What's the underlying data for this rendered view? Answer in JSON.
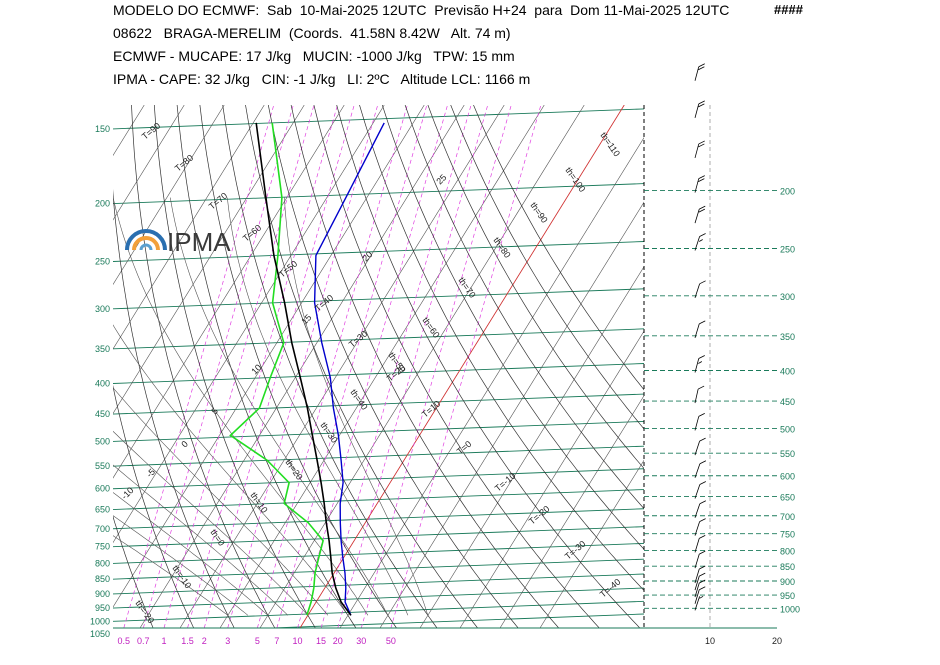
{
  "header": {
    "line1": "MODELO DO ECMWF:  Sab  10-Mai-2025 12UTC  Previsão H+24  para  Dom 11-Mai-2025 12UTC",
    "hashes": "####",
    "line2": "08622   BRAGA-MERELIM  (Coords.  41.58N 8.42W   Alt. 74 m)",
    "line3": "ECMWF - MUCAPE: 17 J/kg   MUCIN: -1000 J/kg   TPW: 15 mm",
    "line4": "IPMA - CAPE: 32 J/kg   CIN: -1 J/kg   LI: 2ºC   Altitude LCL: 1166 m"
  },
  "logo": {
    "text": "IPMA"
  },
  "colors": {
    "isobar": "#1a7a5a",
    "mixing_ratio": "#e040e0",
    "temperature_line": "#1a6a5a",
    "dewpoint_line": "#000000",
    "parcel": "#000000",
    "temperature": "#0000cc",
    "dewpoint": "#22dd22",
    "freezing": "#dd3333"
  },
  "chart_data": {
    "type": "line",
    "title": "",
    "xlabel": "",
    "ylabel": "",
    "pressure_levels": [
      1050,
      1000,
      950,
      900,
      850,
      800,
      750,
      700,
      650,
      600,
      550,
      500,
      450,
      400,
      350,
      300,
      250,
      200,
      150
    ],
    "pressure_labels": [
      "1050",
      "1000",
      "950",
      "900",
      "850",
      "800",
      "750",
      "700",
      "650",
      "600",
      "550",
      "500",
      "450",
      "400",
      "350",
      "300",
      "250",
      "200",
      "150"
    ],
    "right_pressure_labels": [
      "1000",
      "950",
      "900",
      "850",
      "800",
      "750",
      "700",
      "650",
      "600",
      "550",
      "500",
      "450",
      "400",
      "350",
      "300",
      "250",
      "200"
    ],
    "mixing_ratio_labels": [
      "0.5",
      "0.7",
      "1",
      "1.5",
      "2",
      "3",
      "5",
      "7",
      "10",
      "15",
      "20",
      "30",
      "50"
    ],
    "wind_speed_ticks": [
      "10",
      "20"
    ],
    "isotherm_labels": [
      "T=90",
      "T=80",
      "T=70",
      "T=60",
      "T=50",
      "T=40",
      "T=30",
      "T=20",
      "T=10",
      "T=0",
      "T=-10",
      "T=-20",
      "T=-30",
      "T=-40"
    ],
    "dry_adiabat_labels": [
      "th=110",
      "th=100",
      "th=90",
      "th=80",
      "th=70",
      "th=60",
      "th=50",
      "th=40",
      "th=30",
      "th=20",
      "th=10",
      "th=0",
      "th=-10",
      "th=-20"
    ],
    "moist_adiabat_labels": [
      "25",
      "20",
      "15",
      "10",
      "5",
      "0",
      "-5",
      "-10"
    ],
    "series": [
      {
        "key": "temperature",
        "points": [
          [
            1000,
            12.0
          ],
          [
            950,
            8.5
          ],
          [
            900,
            6.5
          ],
          [
            850,
            4.0
          ],
          [
            800,
            1.0
          ],
          [
            750,
            -2.0
          ],
          [
            700,
            -5.0
          ],
          [
            650,
            -8.0
          ],
          [
            600,
            -10.5
          ],
          [
            550,
            -14.5
          ],
          [
            500,
            -19.0
          ],
          [
            450,
            -24.5
          ],
          [
            400,
            -30.0
          ],
          [
            350,
            -37.5
          ],
          [
            300,
            -45.5
          ],
          [
            250,
            -52.5
          ],
          [
            200,
            -54.0
          ],
          [
            150,
            -56.0
          ]
        ]
      },
      {
        "key": "dewpoint",
        "points": [
          [
            1000,
            1.0
          ],
          [
            950,
            0.0
          ],
          [
            900,
            -1.5
          ],
          [
            850,
            -3.5
          ],
          [
            800,
            -5.0
          ],
          [
            750,
            -6.5
          ],
          [
            700,
            -13.0
          ],
          [
            650,
            -22.0
          ],
          [
            600,
            -24.0
          ],
          [
            550,
            -33.0
          ],
          [
            500,
            -46.0
          ],
          [
            450,
            -43.0
          ],
          [
            400,
            -45.0
          ],
          [
            350,
            -47.0
          ],
          [
            300,
            -56.0
          ],
          [
            250,
            -62.0
          ],
          [
            200,
            -70.0
          ],
          [
            150,
            -84.0
          ]
        ]
      },
      {
        "key": "parcel",
        "points": [
          [
            1000,
            12.0
          ],
          [
            950,
            7.5
          ],
          [
            900,
            4.0
          ],
          [
            850,
            0.8
          ],
          [
            800,
            -2.0
          ],
          [
            750,
            -5.0
          ],
          [
            700,
            -8.5
          ],
          [
            650,
            -12.0
          ],
          [
            600,
            -16.0
          ],
          [
            550,
            -20.5
          ],
          [
            500,
            -25.5
          ],
          [
            450,
            -31.0
          ],
          [
            400,
            -37.5
          ],
          [
            350,
            -45.0
          ],
          [
            300,
            -53.0
          ],
          [
            250,
            -63.0
          ],
          [
            200,
            -74.0
          ],
          [
            150,
            -88.0
          ]
        ]
      }
    ],
    "wind_barbs": [
      {
        "p": 1000,
        "dir": 290,
        "spd": 5
      },
      {
        "p": 975,
        "dir": 300,
        "spd": 10
      },
      {
        "p": 950,
        "dir": 300,
        "spd": 10
      },
      {
        "p": 925,
        "dir": 300,
        "spd": 10
      },
      {
        "p": 900,
        "dir": 300,
        "spd": 10
      },
      {
        "p": 850,
        "dir": 300,
        "spd": 10
      },
      {
        "p": 800,
        "dir": 300,
        "spd": 10
      },
      {
        "p": 750,
        "dir": 290,
        "spd": 10
      },
      {
        "p": 700,
        "dir": 280,
        "spd": 10
      },
      {
        "p": 650,
        "dir": 280,
        "spd": 10
      },
      {
        "p": 600,
        "dir": 270,
        "spd": 10
      },
      {
        "p": 550,
        "dir": 250,
        "spd": 10
      },
      {
        "p": 500,
        "dir": 230,
        "spd": 10
      },
      {
        "p": 450,
        "dir": 220,
        "spd": 10
      },
      {
        "p": 400,
        "dir": 230,
        "spd": 15
      },
      {
        "p": 350,
        "dir": 240,
        "spd": 10
      },
      {
        "p": 300,
        "dir": 250,
        "spd": 10
      },
      {
        "p": 250,
        "dir": 250,
        "spd": 15
      },
      {
        "p": 225,
        "dir": 240,
        "spd": 20
      },
      {
        "p": 200,
        "dir": 230,
        "spd": 20
      },
      {
        "p": 175,
        "dir": 230,
        "spd": 20
      },
      {
        "p": 150,
        "dir": 230,
        "spd": 20
      },
      {
        "p": 130,
        "dir": 230,
        "spd": 20
      }
    ]
  }
}
